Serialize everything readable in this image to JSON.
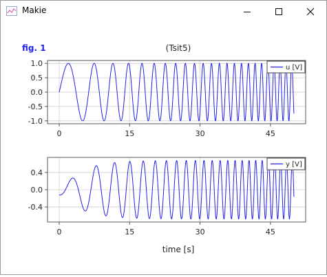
{
  "window": {
    "title": "Makie",
    "icon": "makie-icon",
    "controls": [
      "minimize-icon",
      "maximize-icon",
      "close-icon"
    ]
  },
  "figure": {
    "label": "fig. 1",
    "title": "(Tsit5)",
    "xlabel": "time [s]",
    "accent_color": "#2020e8",
    "line_color": "#2020e8"
  },
  "chart_data": [
    {
      "type": "line",
      "legend": "u [V]",
      "legend_position": "top-right",
      "grid": true,
      "xlim": [
        -2.5,
        52.5
      ],
      "ylim": [
        -1.1,
        1.1
      ],
      "xticks": [
        0,
        15,
        30,
        45
      ],
      "xtick_labels": [
        "0",
        "15",
        "30",
        "45"
      ],
      "yticks": [
        -1.0,
        -0.5,
        0.0,
        0.5,
        1.0
      ],
      "ytick_labels": [
        "-1.0",
        "-0.5",
        "0.0",
        "0.5",
        "1.0"
      ],
      "series": [
        {
          "formula": "u(t) = sin(0.72 t + 0.045 t^2)",
          "x_range": [
            0,
            50
          ],
          "amplitude": 1.0
        }
      ]
    },
    {
      "type": "line",
      "legend": "y [V]",
      "legend_position": "top-right",
      "grid": true,
      "xlim": [
        -2.5,
        52.5
      ],
      "ylim": [
        -0.75,
        0.75
      ],
      "xticks": [
        0,
        15,
        30,
        45
      ],
      "xtick_labels": [
        "0",
        "15",
        "30",
        "45"
      ],
      "yticks": [
        -0.4,
        0.0,
        0.4
      ],
      "ytick_labels": [
        "-0.4",
        "0.0",
        "0.4"
      ],
      "series": [
        {
          "formula": "filtered response of u",
          "x_range": [
            0,
            50
          ],
          "approx_amplitude": 0.68
        }
      ]
    }
  ]
}
